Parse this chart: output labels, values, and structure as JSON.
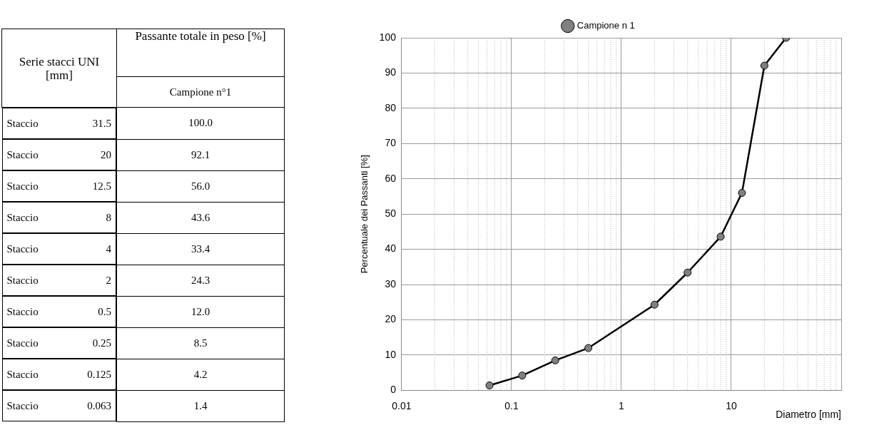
{
  "chart_data": [
    {
      "type": "other",
      "annotations": [
        "Serie stacci UNI [mm]",
        "Passante totale in peso [%]",
        "Campione n°1",
        "Staccio",
        "31.5",
        "100.0",
        "Staccio",
        "20",
        "92.1",
        "Staccio",
        "12.5",
        "56.0",
        "Staccio",
        "8",
        "43.6",
        "Staccio",
        "4",
        "33.4",
        "Staccio",
        "2",
        "24.3",
        "Staccio",
        "0.5",
        "12.0",
        "Staccio",
        "0.25",
        "8.5",
        "Staccio",
        "0.125",
        "4.2",
        "Staccio",
        "0.063",
        "1.4"
      ]
    },
    {
      "type": "line",
      "xlabel": "Diametro [mm]",
      "ylabel": "Percentuale dei Passanti [%]",
      "x": [
        31.5,
        20,
        12.5,
        8,
        4,
        2,
        0.5,
        0.25,
        0.125,
        0.063
      ],
      "series": [
        {
          "name": "Campione n 1",
          "color": "#000000",
          "values": [
            100,
            92.1,
            56,
            43.6,
            33.4,
            24.3,
            12,
            8.5,
            4.2,
            1.4
          ]
        }
      ],
      "log": "x",
      "xlim": [
        0.01,
        100
      ],
      "xticks": [
        0.01,
        0.1,
        1,
        10,
        {
          "value": 100,
          "label": null
        }
      ],
      "ylim": [
        0,
        100
      ],
      "yticks": [
        0,
        10,
        20,
        30,
        40,
        50,
        60,
        70,
        80,
        90,
        100
      ],
      "grid": true,
      "legend": "top",
      "marker": "circle",
      "line_style": "solid"
    }
  ]
}
